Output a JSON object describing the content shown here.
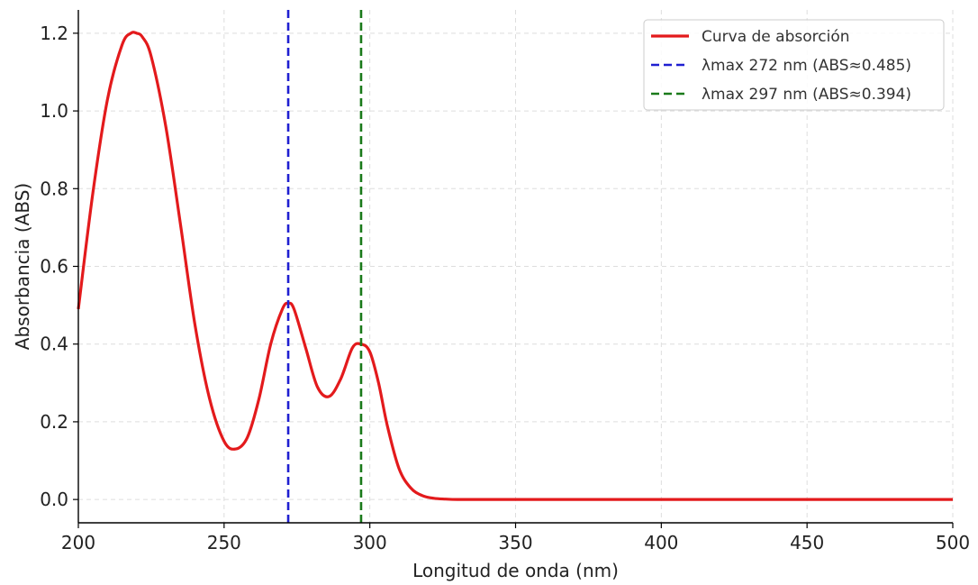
{
  "chart_data": {
    "type": "line",
    "title": "",
    "xlabel": "Longitud de onda (nm)",
    "ylabel": "Absorbancia (ABS)",
    "xlim": [
      200,
      500
    ],
    "ylim": [
      -0.06,
      1.26
    ],
    "xticks": [
      200,
      250,
      300,
      350,
      400,
      450,
      500
    ],
    "yticks": [
      0.0,
      0.2,
      0.4,
      0.6,
      0.8,
      1.0,
      1.2
    ],
    "xtick_labels": [
      "200",
      "250",
      "300",
      "350",
      "400",
      "450",
      "500"
    ],
    "ytick_labels": [
      "0.0",
      "0.2",
      "0.4",
      "0.6",
      "0.8",
      "1.0",
      "1.2"
    ],
    "grid": true,
    "legend_position": "top-right",
    "series": [
      {
        "name": "Curva de absorción",
        "color": "#e31a1c",
        "style": "solid",
        "x": [
          200,
          205,
          210,
          215,
          218,
          220,
          222,
          225,
          230,
          235,
          240,
          245,
          250,
          254,
          258,
          262,
          266,
          270,
          272,
          274,
          278,
          282,
          286,
          290,
          294,
          297,
          300,
          303,
          306,
          310,
          314,
          318,
          322,
          326,
          330,
          340,
          350,
          400,
          450,
          500
        ],
        "y": [
          0.49,
          0.79,
          1.03,
          1.17,
          1.2,
          1.2,
          1.19,
          1.14,
          0.96,
          0.71,
          0.45,
          0.26,
          0.15,
          0.13,
          0.16,
          0.26,
          0.4,
          0.49,
          0.505,
          0.49,
          0.39,
          0.29,
          0.265,
          0.31,
          0.39,
          0.4,
          0.38,
          0.3,
          0.19,
          0.08,
          0.03,
          0.01,
          0.003,
          0.001,
          0.0,
          0.0,
          0.0,
          0.0,
          0.0,
          0.0
        ]
      },
      {
        "name": "λmax 272 nm (ABS≈0.485)",
        "color": "#1f1fd1",
        "style": "dashed",
        "vline_x": 272
      },
      {
        "name": "λmax 297 nm (ABS≈0.394)",
        "color": "#1a7a1a",
        "style": "dashed",
        "vline_x": 297
      }
    ]
  }
}
